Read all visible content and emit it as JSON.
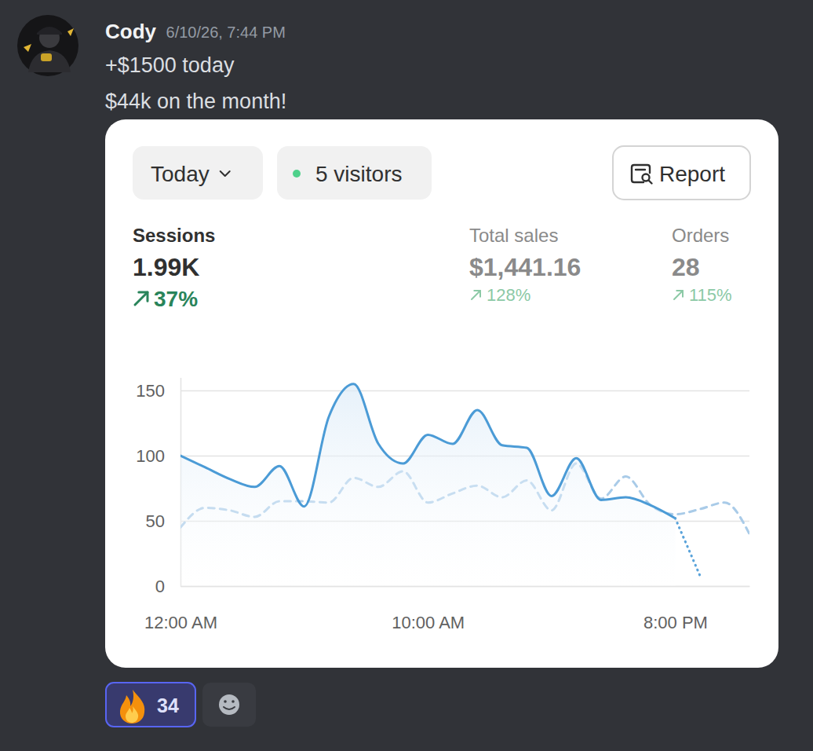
{
  "message": {
    "author": "Cody",
    "timestamp": "6/10/26, 7:44 PM",
    "lines": [
      "+$1500 today",
      "$44k on the month!"
    ],
    "reactions": [
      {
        "count": 34
      }
    ]
  },
  "card": {
    "period": "Today",
    "visitors": "5 visitors",
    "report": "Report",
    "metrics": [
      {
        "label": "Sessions",
        "value": "1.99K",
        "change": "37%"
      },
      {
        "label": "Total sales",
        "value": "$1,441.16",
        "change": "128%"
      },
      {
        "label": "Orders",
        "value": "28",
        "change": "115%"
      }
    ]
  },
  "chart_data": {
    "type": "line",
    "x": [
      0,
      1,
      2,
      3,
      4,
      5,
      6,
      7,
      8,
      9,
      10,
      11,
      12,
      13,
      14,
      15,
      16,
      17,
      18,
      19,
      20,
      21,
      22,
      23
    ],
    "xlim": [
      0,
      23
    ],
    "xticks": [
      {
        "value": 0,
        "label": "12:00 AM"
      },
      {
        "value": 10,
        "label": "10:00 AM"
      },
      {
        "value": 20,
        "label": "8:00 PM"
      }
    ],
    "ylim": [
      0,
      160
    ],
    "yticks": [
      0,
      50,
      100,
      150
    ],
    "grid": true,
    "series": [
      {
        "color": "#a9cbe8",
        "line_style": "dashed",
        "values": [
          45,
          60,
          58,
          53,
          65,
          65,
          64,
          83,
          76,
          88,
          64,
          71,
          77,
          68,
          81,
          58,
          94,
          67,
          84,
          62,
          55,
          59,
          64,
          40
        ]
      },
      {
        "type": "area",
        "color": "#4b9bd6",
        "line_style": "solid",
        "values": [
          100,
          91,
          82,
          76,
          92,
          61,
          130,
          155,
          109,
          94,
          116,
          109,
          135,
          108,
          106,
          69,
          98,
          66,
          68,
          62,
          52,
          null,
          null,
          null
        ]
      },
      {
        "color": "#5aa3da",
        "line_style": "dotted",
        "values": [
          null,
          null,
          null,
          null,
          null,
          null,
          null,
          null,
          null,
          null,
          null,
          null,
          null,
          null,
          null,
          null,
          null,
          null,
          null,
          null,
          52,
          8,
          null,
          null
        ]
      }
    ]
  }
}
